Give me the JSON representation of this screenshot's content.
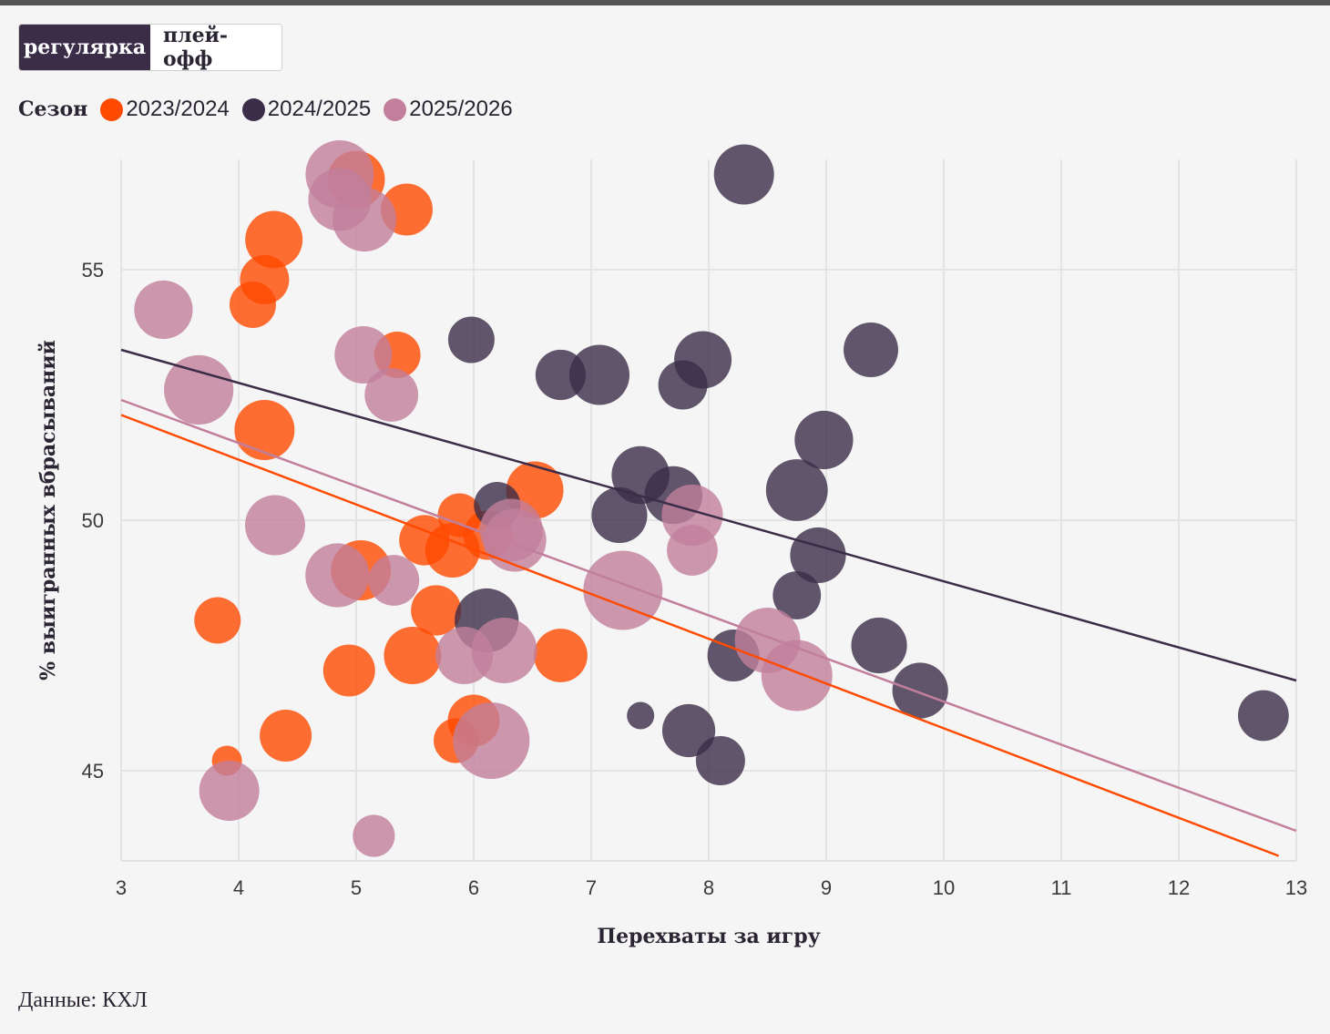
{
  "controls": {
    "toggle": [
      {
        "label": "регулярка",
        "active": true
      },
      {
        "label": "плей-офф",
        "active": false
      }
    ]
  },
  "legend": {
    "title": "Сезон",
    "items": [
      {
        "label": "2023/2024",
        "color": "#ff4a00"
      },
      {
        "label": "2024/2025",
        "color": "#3b2d48"
      },
      {
        "label": "2025/2026",
        "color": "#c27f9b"
      }
    ]
  },
  "footer": {
    "source": "Данные: КХЛ"
  },
  "chart_data": {
    "type": "scatter",
    "subtype": "bubble",
    "xlabel": "Перехваты за игру",
    "ylabel": "% выигранных вбрасываний",
    "xlim": [
      3,
      13
    ],
    "ylim": [
      43.2,
      57.2
    ],
    "xticks": [
      "3",
      "4",
      "5",
      "6",
      "7",
      "8",
      "9",
      "10",
      "11",
      "12",
      "13"
    ],
    "yticks": [
      "45",
      "50",
      "55"
    ],
    "grid": true,
    "series": [
      {
        "name": "2023/2024",
        "color": "#ff4a00",
        "points": [
          [
            5.0,
            56.8,
            1.05
          ],
          [
            5.43,
            56.2,
            0.95
          ],
          [
            4.3,
            55.6,
            1.05
          ],
          [
            4.22,
            54.8,
            0.9
          ],
          [
            4.12,
            54.3,
            0.85
          ],
          [
            5.35,
            53.3,
            0.85
          ],
          [
            4.22,
            51.8,
            1.1
          ],
          [
            6.52,
            50.6,
            1.05
          ],
          [
            5.88,
            50.1,
            0.8
          ],
          [
            5.58,
            49.6,
            0.92
          ],
          [
            5.82,
            49.4,
            1.0
          ],
          [
            6.12,
            49.7,
            0.9
          ],
          [
            5.04,
            49.0,
            1.1
          ],
          [
            3.82,
            48.0,
            0.85
          ],
          [
            5.68,
            48.2,
            0.92
          ],
          [
            5.48,
            47.3,
            1.05
          ],
          [
            6.74,
            47.3,
            0.98
          ],
          [
            4.94,
            47.0,
            0.95
          ],
          [
            4.4,
            45.7,
            0.95
          ],
          [
            3.9,
            45.2,
            0.55
          ],
          [
            6.0,
            46.0,
            0.95
          ],
          [
            5.85,
            45.6,
            0.82
          ]
        ]
      },
      {
        "name": "2024/2025",
        "color": "#3b2d48",
        "points": [
          [
            8.3,
            56.9,
            1.1
          ],
          [
            5.98,
            53.6,
            0.85
          ],
          [
            9.38,
            53.4,
            1.0
          ],
          [
            6.74,
            52.9,
            0.92
          ],
          [
            7.07,
            52.9,
            1.1
          ],
          [
            7.95,
            53.2,
            1.05
          ],
          [
            7.78,
            52.7,
            0.9
          ],
          [
            8.98,
            51.6,
            1.07
          ],
          [
            8.75,
            50.6,
            1.13
          ],
          [
            7.42,
            50.9,
            1.06
          ],
          [
            7.7,
            50.5,
            1.06
          ],
          [
            6.2,
            50.3,
            0.85
          ],
          [
            7.24,
            50.1,
            1.02
          ],
          [
            8.93,
            49.3,
            1.02
          ],
          [
            8.75,
            48.5,
            0.88
          ],
          [
            6.11,
            48.0,
            1.17
          ],
          [
            8.21,
            47.3,
            0.95
          ],
          [
            9.45,
            47.5,
            1.02
          ],
          [
            9.8,
            46.6,
            1.02
          ],
          [
            12.72,
            46.1,
            0.93
          ],
          [
            7.42,
            46.1,
            0.5
          ],
          [
            7.83,
            45.8,
            0.97
          ],
          [
            8.1,
            45.2,
            0.9
          ]
        ]
      },
      {
        "name": "2025/2026",
        "color": "#c27f9b",
        "points": [
          [
            4.86,
            56.9,
            1.25
          ],
          [
            4.86,
            56.4,
            1.15
          ],
          [
            5.07,
            56.0,
            1.17
          ],
          [
            3.36,
            54.2,
            1.07
          ],
          [
            5.06,
            53.3,
            1.05
          ],
          [
            3.66,
            52.6,
            1.27
          ],
          [
            5.3,
            52.5,
            0.98
          ],
          [
            4.31,
            49.9,
            1.1
          ],
          [
            6.32,
            49.8,
            1.15
          ],
          [
            6.35,
            49.6,
            1.15
          ],
          [
            4.84,
            48.9,
            1.17
          ],
          [
            5.32,
            48.8,
            0.93
          ],
          [
            7.27,
            48.6,
            1.45
          ],
          [
            7.86,
            50.1,
            1.12
          ],
          [
            7.86,
            49.4,
            0.93
          ],
          [
            5.92,
            47.3,
            1.05
          ],
          [
            6.26,
            47.4,
            1.2
          ],
          [
            8.5,
            47.6,
            1.2
          ],
          [
            8.75,
            46.9,
            1.3
          ],
          [
            6.15,
            45.6,
            1.4
          ],
          [
            3.92,
            44.6,
            1.1
          ],
          [
            5.15,
            43.7,
            0.77
          ]
        ]
      }
    ],
    "trendlines": [
      {
        "series": "2023/2024",
        "color": "#ff4a00",
        "x": [
          3,
          12.85
        ],
        "y": [
          52.1,
          43.3
        ]
      },
      {
        "series": "2024/2025",
        "color": "#3b2d48",
        "x": [
          3,
          13
        ],
        "y": [
          53.4,
          46.8
        ]
      },
      {
        "series": "2025/2026",
        "color": "#c27f9b",
        "x": [
          3,
          13
        ],
        "y": [
          52.4,
          43.8
        ]
      }
    ]
  }
}
